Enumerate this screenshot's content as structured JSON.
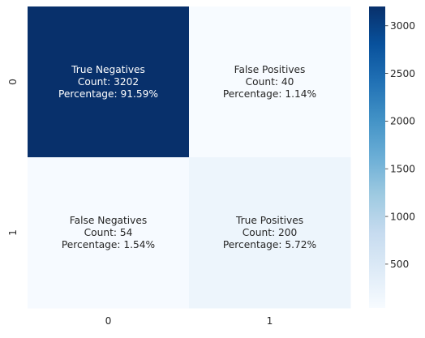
{
  "chart_data": {
    "type": "heatmap",
    "title": "",
    "xlabel": "",
    "ylabel": "",
    "x_categories": [
      "0",
      "1"
    ],
    "y_categories": [
      "0",
      "1"
    ],
    "values": [
      [
        3202,
        40
      ],
      [
        54,
        200
      ]
    ],
    "cell_labels": [
      [
        [
          "True Negatives",
          "Count: 3202",
          "Percentage: 91.59%"
        ],
        [
          "False Positives",
          "Count: 40",
          "Percentage: 1.14%"
        ]
      ],
      [
        [
          "False Negatives",
          "Count: 54",
          "Percentage: 1.54%"
        ],
        [
          "True Positives",
          "Count: 200",
          "Percentage: 5.72%"
        ]
      ]
    ],
    "colormap": "Blues",
    "colormap_stops": [
      "#f7fbff",
      "#deebf7",
      "#c6dbef",
      "#9ecae1",
      "#6baed6",
      "#4292c6",
      "#2171b5",
      "#08519c",
      "#08306b"
    ],
    "value_range": [
      40,
      3202
    ],
    "colorbar": {
      "ticks": [
        "500",
        "1000",
        "1500",
        "2000",
        "2500",
        "3000"
      ],
      "tick_values": [
        500,
        1000,
        1500,
        2000,
        2500,
        3000
      ]
    },
    "grid": false,
    "legend": "none"
  }
}
